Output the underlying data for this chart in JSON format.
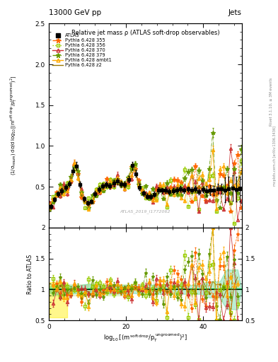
{
  "title_left": "13000 GeV pp",
  "title_right": "Jets",
  "plot_title": "Relative jet mass ρ (ATLAS soft-drop observables)",
  "watermark": "ATLAS_2019_I1772062",
  "rivet_text": "Rivet 3.1.10, ≥ 3M events",
  "mcplots_text": "mcplots.cern.ch [arXiv:1306.3436]",
  "ylabel_main": "(1/σ$_{\\mathrm{resum}}$) dσ/d log$_{10}$[(m$^{\\mathrm{soft\\,drop}}$/p$_\\mathrm{T}^{\\mathrm{ungroomed}}$)$^2$]",
  "ylabel_ratio": "Ratio to ATLAS",
  "xlabel": "log$_{10}$[(m$^{\\mathrm{soft\\,drop}}$/p$_\\mathrm{T}^{\\mathrm{ungroomed}}$)$^2$]",
  "ylim_main": [
    0.0,
    2.5
  ],
  "ylim_ratio": [
    0.5,
    2.0
  ],
  "xlim": [
    0,
    50
  ],
  "yticks_main": [
    0.5,
    1.0,
    1.5,
    2.0,
    2.5
  ],
  "yticks_ratio": [
    0.5,
    1.0,
    1.5,
    2.0
  ],
  "colors": {
    "atlas": "#000000",
    "p355": "#FF6600",
    "p356": "#99CC00",
    "p370": "#CC3333",
    "p379": "#669900",
    "pambt1": "#FFAA00",
    "pz2": "#997700"
  },
  "band_yellow": "#FFEE00",
  "band_green": "#88CC44",
  "band_cyan": "#44BBAA",
  "band_orange": "#FFAA44"
}
